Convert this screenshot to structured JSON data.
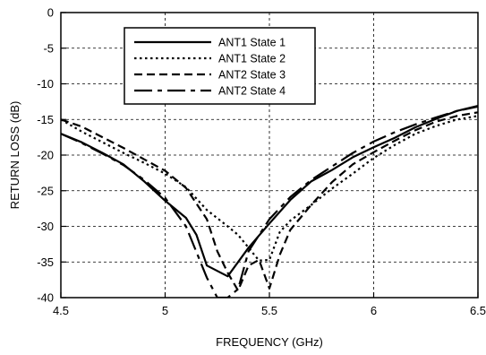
{
  "chart_data": {
    "type": "line",
    "xlabel": "FREQUENCY (GHz)",
    "ylabel": "RETURN LOSS (dB)",
    "xlim": [
      4.5,
      6.5
    ],
    "ylim": [
      -40,
      0
    ],
    "x_ticks": [
      4.5,
      5,
      5.5,
      6,
      6.5
    ],
    "y_ticks": [
      0,
      -5,
      -10,
      -15,
      -20,
      -25,
      -30,
      -35,
      -40
    ],
    "x_tick_labels": [
      "4.5",
      "5",
      "5.5",
      "6",
      "6.5"
    ],
    "y_tick_labels": [
      "0",
      "-5",
      "-10",
      "-15",
      "-20",
      "-25",
      "-30",
      "-35",
      "-40"
    ],
    "grid": "dashed",
    "legend_position": "top-center",
    "series": [
      {
        "name": "ANT1 State 1",
        "dash": "solid",
        "points": [
          [
            4.5,
            -17.0
          ],
          [
            4.6,
            -18.2
          ],
          [
            4.7,
            -19.7
          ],
          [
            4.8,
            -21.3
          ],
          [
            4.9,
            -23.7
          ],
          [
            5.0,
            -26.4
          ],
          [
            5.1,
            -28.8
          ],
          [
            5.15,
            -31.2
          ],
          [
            5.2,
            -35.5
          ],
          [
            5.3,
            -37.0
          ],
          [
            5.4,
            -33.0
          ],
          [
            5.5,
            -29.6
          ],
          [
            5.6,
            -26.3
          ],
          [
            5.7,
            -23.7
          ],
          [
            5.8,
            -22.1
          ],
          [
            5.9,
            -20.3
          ],
          [
            6.0,
            -18.9
          ],
          [
            6.1,
            -17.6
          ],
          [
            6.2,
            -16.1
          ],
          [
            6.3,
            -14.9
          ],
          [
            6.4,
            -13.8
          ],
          [
            6.5,
            -13.1
          ]
        ]
      },
      {
        "name": "ANT1 State 2",
        "dash": "dotted",
        "points": [
          [
            4.5,
            -15.0
          ],
          [
            4.6,
            -16.7
          ],
          [
            4.7,
            -18.2
          ],
          [
            4.8,
            -19.7
          ],
          [
            4.9,
            -21.1
          ],
          [
            5.0,
            -22.6
          ],
          [
            5.1,
            -24.5
          ],
          [
            5.2,
            -27.7
          ],
          [
            5.3,
            -30.0
          ],
          [
            5.35,
            -31.2
          ],
          [
            5.4,
            -33.0
          ],
          [
            5.45,
            -34.8
          ],
          [
            5.5,
            -34.7
          ],
          [
            5.55,
            -30.8
          ],
          [
            5.6,
            -29.2
          ],
          [
            5.7,
            -27.0
          ],
          [
            5.8,
            -24.7
          ],
          [
            5.9,
            -22.6
          ],
          [
            6.0,
            -20.4
          ],
          [
            6.1,
            -18.6
          ],
          [
            6.2,
            -17.0
          ],
          [
            6.3,
            -15.9
          ],
          [
            6.4,
            -15.0
          ],
          [
            6.5,
            -14.5
          ]
        ]
      },
      {
        "name": "ANT2 State 3",
        "dash": "dashed",
        "points": [
          [
            4.5,
            -15.0
          ],
          [
            4.6,
            -16.0
          ],
          [
            4.7,
            -17.5
          ],
          [
            4.8,
            -19.0
          ],
          [
            4.9,
            -20.6
          ],
          [
            5.0,
            -22.2
          ],
          [
            5.1,
            -24.6
          ],
          [
            5.2,
            -29.0
          ],
          [
            5.25,
            -33.5
          ],
          [
            5.3,
            -36.5
          ],
          [
            5.35,
            -39.0
          ],
          [
            5.4,
            -35.5
          ],
          [
            5.45,
            -34.7
          ],
          [
            5.5,
            -38.7
          ],
          [
            5.55,
            -34.0
          ],
          [
            5.6,
            -30.5
          ],
          [
            5.7,
            -27.0
          ],
          [
            5.8,
            -23.8
          ],
          [
            5.9,
            -21.3
          ],
          [
            6.0,
            -19.6
          ],
          [
            6.1,
            -18.0
          ],
          [
            6.2,
            -16.5
          ],
          [
            6.3,
            -15.3
          ],
          [
            6.4,
            -14.5
          ],
          [
            6.5,
            -14.0
          ]
        ]
      },
      {
        "name": "ANT2 State 4",
        "dash": "longdash",
        "points": [
          [
            4.5,
            -17.0
          ],
          [
            4.6,
            -18.3
          ],
          [
            4.7,
            -19.8
          ],
          [
            4.8,
            -21.4
          ],
          [
            4.9,
            -23.5
          ],
          [
            5.0,
            -26.0
          ],
          [
            5.1,
            -30.0
          ],
          [
            5.2,
            -37.2
          ],
          [
            5.25,
            -40.0
          ],
          [
            5.3,
            -40.0
          ],
          [
            5.35,
            -38.8
          ],
          [
            5.4,
            -33.5
          ],
          [
            5.5,
            -29.0
          ],
          [
            5.6,
            -25.9
          ],
          [
            5.7,
            -23.5
          ],
          [
            5.8,
            -21.6
          ],
          [
            5.9,
            -19.7
          ],
          [
            6.0,
            -18.1
          ],
          [
            6.1,
            -16.8
          ],
          [
            6.2,
            -15.7
          ],
          [
            6.3,
            -14.7
          ],
          [
            6.4,
            -13.8
          ],
          [
            6.5,
            -13.2
          ]
        ]
      }
    ]
  }
}
